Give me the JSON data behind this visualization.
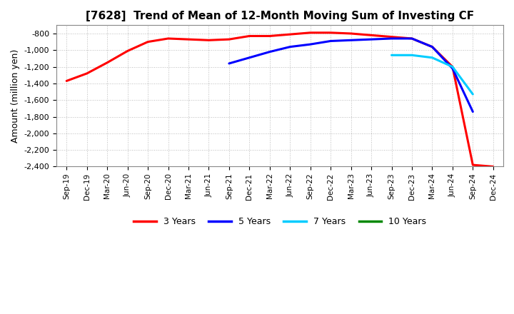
{
  "title": "[7628]  Trend of Mean of 12-Month Moving Sum of Investing CF",
  "ylabel": "Amount (million yen)",
  "ylim": [
    -2400,
    -700
  ],
  "yticks": [
    -2400,
    -2200,
    -2000,
    -1800,
    -1600,
    -1400,
    -1200,
    -1000,
    -800
  ],
  "background_color": "#ffffff",
  "grid_color": "#aaaaaa",
  "series": {
    "3 Years": {
      "color": "#ff0000",
      "x": [
        "Sep-19",
        "Dec-19",
        "Mar-20",
        "Jun-20",
        "Sep-20",
        "Dec-20",
        "Mar-21",
        "Jun-21",
        "Sep-21",
        "Dec-21",
        "Mar-22",
        "Jun-22",
        "Sep-22",
        "Dec-22",
        "Mar-23",
        "Jun-23",
        "Sep-23",
        "Dec-23",
        "Mar-24",
        "Jun-24",
        "Sep-24",
        "Dec-24"
      ],
      "y": [
        -1370,
        -1280,
        -1150,
        -1010,
        -900,
        -860,
        -870,
        -880,
        -870,
        -830,
        -830,
        -810,
        -790,
        -790,
        -800,
        -820,
        -840,
        -860,
        -960,
        -1200,
        -2380,
        -2400
      ]
    },
    "5 Years": {
      "color": "#0000ff",
      "x": [
        "Sep-21",
        "Dec-21",
        "Mar-22",
        "Jun-22",
        "Sep-22",
        "Dec-22",
        "Mar-23",
        "Jun-23",
        "Sep-23",
        "Dec-23",
        "Mar-24",
        "Jun-24",
        "Sep-24"
      ],
      "y": [
        -1160,
        -1090,
        -1020,
        -960,
        -930,
        -890,
        -880,
        -870,
        -860,
        -860,
        -960,
        -1220,
        -1740
      ]
    },
    "7 Years": {
      "color": "#00ccff",
      "x": [
        "Sep-23",
        "Dec-23",
        "Mar-24",
        "Jun-24",
        "Sep-24"
      ],
      "y": [
        -1060,
        -1060,
        -1090,
        -1200,
        -1530
      ]
    },
    "10 Years": {
      "color": "#008800",
      "x": [],
      "y": []
    }
  },
  "legend_entries": [
    {
      "label": "3 Years",
      "color": "#ff0000"
    },
    {
      "label": "5 Years",
      "color": "#0000ff"
    },
    {
      "label": "7 Years",
      "color": "#00ccff"
    },
    {
      "label": "10 Years",
      "color": "#008800"
    }
  ],
  "xtick_labels": [
    "Sep-19",
    "Dec-19",
    "Mar-20",
    "Jun-20",
    "Sep-20",
    "Dec-20",
    "Mar-21",
    "Jun-21",
    "Sep-21",
    "Dec-21",
    "Mar-22",
    "Jun-22",
    "Sep-22",
    "Dec-22",
    "Mar-23",
    "Jun-23",
    "Sep-23",
    "Dec-23",
    "Mar-24",
    "Jun-24",
    "Sep-24",
    "Dec-24"
  ]
}
